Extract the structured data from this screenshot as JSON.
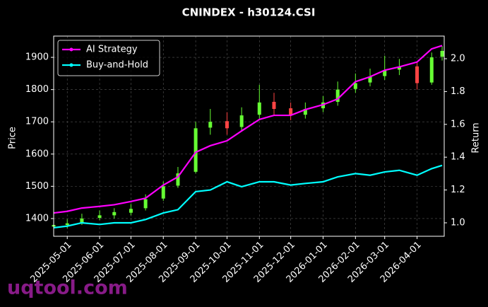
{
  "chart_data": {
    "type": "candlestick",
    "title": "CNINDEX - h30124.CSI",
    "y_label": "Price",
    "y2_label": "Return",
    "watermark": "uqtool.com",
    "x": [
      "2025-04-18",
      "2025-05-01",
      "2025-05-15",
      "2025-06-01",
      "2025-06-15",
      "2025-07-01",
      "2025-07-15",
      "2025-08-01",
      "2025-08-15",
      "2025-09-01",
      "2025-09-15",
      "2025-10-01",
      "2025-10-15",
      "2025-11-01",
      "2025-11-15",
      "2025-12-01",
      "2025-12-15",
      "2026-01-01",
      "2026-01-15",
      "2026-02-01",
      "2026-02-15",
      "2026-03-01",
      "2026-03-15",
      "2026-04-01",
      "2026-04-15",
      "2026-04-25"
    ],
    "open": [
      1375,
      1380,
      1388,
      1402,
      1410,
      1418,
      1432,
      1462,
      1502,
      1545,
      1682,
      1702,
      1684,
      1722,
      1762,
      1742,
      1722,
      1742,
      1762,
      1802,
      1822,
      1842,
      1862,
      1872,
      1822,
      1902
    ],
    "high": [
      1392,
      1398,
      1415,
      1425,
      1432,
      1445,
      1475,
      1515,
      1560,
      1700,
      1740,
      1730,
      1745,
      1815,
      1790,
      1760,
      1760,
      1780,
      1825,
      1850,
      1865,
      1905,
      1895,
      1885,
      1915,
      1935
    ],
    "low": [
      1365,
      1370,
      1380,
      1395,
      1400,
      1410,
      1425,
      1455,
      1495,
      1540,
      1660,
      1660,
      1670,
      1710,
      1720,
      1705,
      1710,
      1730,
      1750,
      1790,
      1810,
      1830,
      1845,
      1800,
      1815,
      1890
    ],
    "close": [
      1380,
      1385,
      1400,
      1410,
      1420,
      1430,
      1460,
      1500,
      1540,
      1680,
      1700,
      1680,
      1720,
      1760,
      1740,
      1720,
      1740,
      1760,
      1800,
      1820,
      1840,
      1860,
      1870,
      1820,
      1900,
      1920
    ],
    "up_color": "#66ff33",
    "down_color": "#ff4444",
    "series": [
      {
        "name": "AI Strategy",
        "color": "#ff00ff",
        "axis": "y2",
        "values": [
          1.06,
          1.07,
          1.09,
          1.1,
          1.11,
          1.13,
          1.15,
          1.23,
          1.28,
          1.43,
          1.47,
          1.5,
          1.56,
          1.63,
          1.655,
          1.655,
          1.69,
          1.72,
          1.755,
          1.86,
          1.89,
          1.93,
          1.95,
          1.98,
          2.06,
          2.08
        ]
      },
      {
        "name": "Buy-and-Hold",
        "color": "#00ffff",
        "axis": "y2",
        "values": [
          0.97,
          0.98,
          1.0,
          0.99,
          1.0,
          1.0,
          1.02,
          1.06,
          1.08,
          1.19,
          1.2,
          1.25,
          1.22,
          1.25,
          1.25,
          1.23,
          1.24,
          1.25,
          1.28,
          1.3,
          1.29,
          1.31,
          1.32,
          1.29,
          1.33,
          1.35
        ]
      }
    ],
    "xlim": [
      "2025-04-18",
      "2026-04-27"
    ],
    "xticks": [
      "2025-05-01",
      "2025-06-01",
      "2025-07-01",
      "2025-08-01",
      "2025-09-01",
      "2025-10-01",
      "2025-11-01",
      "2025-12-01",
      "2026-01-01",
      "2026-02-01",
      "2026-03-01",
      "2026-04-01"
    ],
    "ylim": [
      1345,
      1966
    ],
    "yticks": [
      1400,
      1500,
      1600,
      1700,
      1800,
      1900
    ],
    "y2lim": [
      0.918,
      2.138
    ],
    "y2ticks": [
      {
        "value": 1.0,
        "label": "1.0"
      },
      {
        "value": 1.2,
        "label": "1.2"
      },
      {
        "value": 1.4,
        "label": "1.4"
      },
      {
        "value": 1.6,
        "label": "1.6"
      },
      {
        "value": 1.8,
        "label": "1.8"
      },
      {
        "value": 2.0,
        "label": "2.0"
      }
    ],
    "grid": true,
    "legend": "upper left"
  }
}
